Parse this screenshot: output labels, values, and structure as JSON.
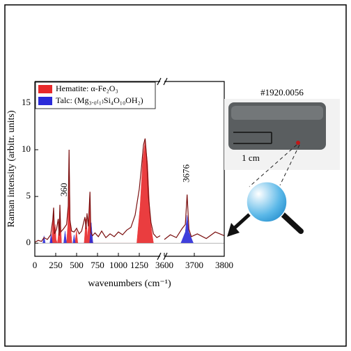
{
  "chart_data": {
    "type": "line",
    "legend": "upper left",
    "xlabel": "wavenumbers (cm⁻¹)",
    "ylabel": "Raman intensity (arbitr. units)",
    "xlim": [
      0,
      3800
    ],
    "x_break": [
      1500,
      3600
    ],
    "ylim": [
      -1.4,
      17.3
    ],
    "xticks": [
      0,
      250,
      500,
      750,
      1000,
      1250,
      3600,
      3700,
      3800
    ],
    "yticks": [
      0,
      5,
      10,
      15
    ],
    "annotations": [
      {
        "text": "360",
        "x": 360,
        "y": 5.0
      },
      {
        "text": "3676",
        "x": 3676,
        "y": 6.5
      }
    ],
    "series": [
      {
        "name": "Hematite: α-Fe₂O₃",
        "color": "#e8292b",
        "fill": true,
        "x": [
          180,
          205,
          225,
          238,
          245,
          255,
          270,
          285,
          292,
          300,
          320,
          380,
          395,
          410,
          425,
          445,
          480,
          498,
          515,
          590,
          612,
          632,
          645,
          660,
          672,
          700,
          1220,
          1260,
          1290,
          1320,
          1350,
          1380,
          1420
        ],
        "values": [
          0,
          0.6,
          3.6,
          1.4,
          2.0,
          0.4,
          0,
          1.2,
          2.4,
          3.9,
          0,
          0,
          2.0,
          9.8,
          2.0,
          0,
          0,
          1.4,
          0,
          0,
          2.6,
          0.6,
          2.8,
          5.3,
          0.5,
          0,
          0,
          4.0,
          8.8,
          11.0,
          8.5,
          2.5,
          0
        ]
      },
      {
        "name": "Talc: (Mg₃.₀₍₁₎Si₄O₁₀OH₂)",
        "color": "#2b2bd9",
        "fill": true,
        "x": [
          95,
          110,
          125,
          180,
          195,
          210,
          345,
          362,
          380,
          455,
          470,
          485,
          655,
          675,
          695,
          3655,
          3670,
          3676,
          3682,
          3697
        ],
        "values": [
          0,
          0.8,
          0,
          0,
          1.0,
          0,
          0,
          1.3,
          0,
          0,
          0.9,
          0,
          0,
          2.2,
          0,
          0,
          1.2,
          3.0,
          1.2,
          0
        ]
      },
      {
        "color": "#7a0e0e",
        "fill": false,
        "x": [
          0,
          40,
          80,
          110,
          150,
          190,
          215,
          225,
          235,
          260,
          280,
          292,
          300,
          310,
          340,
          380,
          400,
          410,
          420,
          440,
          470,
          500,
          530,
          560,
          600,
          612,
          625,
          640,
          660,
          670,
          690,
          720,
          760,
          800,
          850,
          900,
          950,
          1000,
          1050,
          1100,
          1150,
          1200,
          1250,
          1280,
          1300,
          1320,
          1340,
          1360,
          1390,
          1420,
          1460,
          1500,
          3600,
          3620,
          3640,
          3660,
          3670,
          3676,
          3682,
          3690,
          3710,
          3740,
          3770,
          3800
        ],
        "values": [
          0.1,
          0.3,
          0.2,
          0.6,
          0.4,
          0.9,
          2.5,
          3.8,
          1.0,
          1.5,
          2.6,
          0.8,
          4.1,
          1.2,
          1.5,
          2.0,
          4.0,
          10.0,
          2.5,
          1.3,
          1.2,
          1.6,
          1.0,
          1.3,
          2.8,
          1.5,
          3.2,
          1.8,
          5.5,
          1.2,
          0.8,
          1.1,
          0.7,
          1.3,
          0.6,
          1.0,
          0.7,
          1.2,
          0.9,
          1.4,
          1.7,
          3.0,
          5.8,
          8.5,
          10.5,
          11.2,
          9.0,
          5.0,
          2.2,
          1.0,
          0.6,
          0.8,
          0.4,
          0.9,
          0.6,
          1.6,
          2.0,
          5.2,
          1.5,
          0.7,
          1.0,
          0.5,
          1.2,
          0.8
        ]
      }
    ]
  },
  "illustration": {
    "sample_id": "#1920.0056",
    "scale_label": "1 cm"
  }
}
